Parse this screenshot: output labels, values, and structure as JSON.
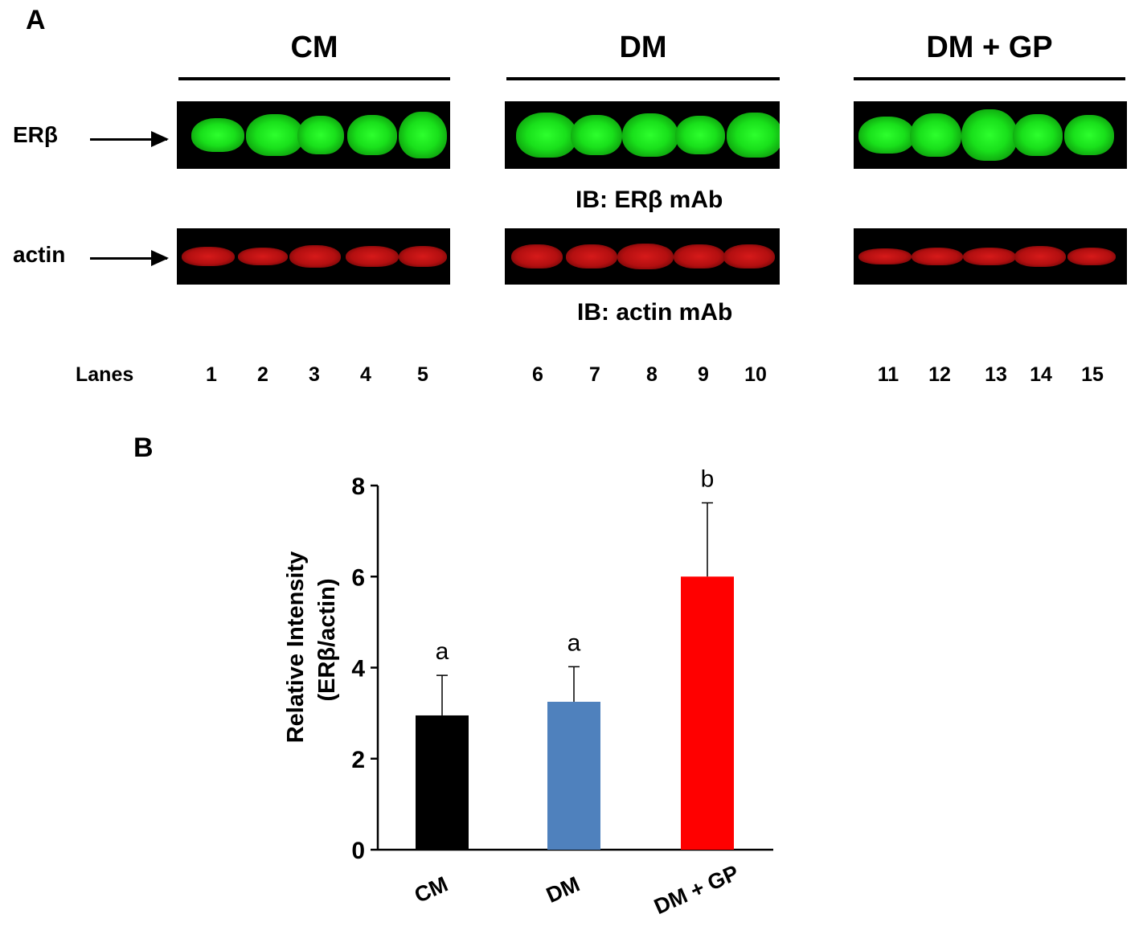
{
  "panel_a": {
    "letter": "A",
    "groups": [
      {
        "label": "CM"
      },
      {
        "label": "DM"
      },
      {
        "label": "DM + GP"
      }
    ],
    "rows": [
      {
        "label": "ERβ",
        "ib_label": "IB: ERβ mAb",
        "color": "#19e01b"
      },
      {
        "label": "actin",
        "ib_label": "IB: actin mAb",
        "color": "#c81414"
      }
    ],
    "lanes_label": "Lanes",
    "lanes": [
      "1",
      "2",
      "3",
      "4",
      "5",
      "6",
      "7",
      "8",
      "9",
      "10",
      "11",
      "12",
      "13",
      "14",
      "15"
    ]
  },
  "panel_b": {
    "letter": "B"
  },
  "chart_data": {
    "type": "bar",
    "categories": [
      "CM",
      "DM",
      "DM + GP"
    ],
    "values": [
      2.95,
      3.25,
      6.0
    ],
    "errors": [
      0.88,
      0.77,
      1.62
    ],
    "significance": [
      "a",
      "a",
      "b"
    ],
    "colors": [
      "#000000",
      "#4f81bd",
      "#ff0000"
    ],
    "ylabel_line1": "Relative Intensity",
    "ylabel_line2": "(ERβ/actin)",
    "ylim": [
      0,
      8
    ],
    "yticks": [
      "0",
      "2",
      "4",
      "6",
      "8"
    ],
    "grid": false
  }
}
